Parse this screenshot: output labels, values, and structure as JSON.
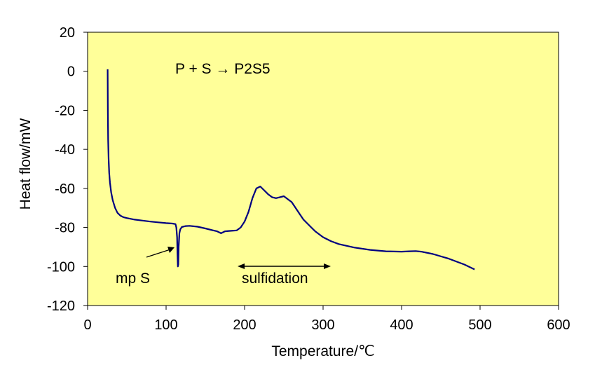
{
  "chart_data": {
    "type": "line",
    "title": "P + S → P2S5",
    "xlabel": "Temperature/℃",
    "ylabel": "Heat flow/mW",
    "xlim": [
      0,
      600
    ],
    "ylim": [
      -120,
      20
    ],
    "xticks": [
      0,
      100,
      200,
      300,
      400,
      500,
      600
    ],
    "yticks": [
      20,
      0,
      -20,
      -40,
      -60,
      -80,
      -100,
      -120
    ],
    "xtick_labels": [
      "0",
      "100",
      "200",
      "300",
      "400",
      "500",
      "600"
    ],
    "ytick_labels": [
      "20",
      "0",
      "-20",
      "-40",
      "-60",
      "-80",
      "-100",
      "-120"
    ],
    "grid": false,
    "plot_background": "#FFFF99",
    "line_color": "#000080",
    "series": [
      {
        "x": [
          25.5,
          25.8,
          26.2,
          26.8,
          27.5,
          28.5,
          30,
          32,
          35,
          38,
          42,
          46,
          50,
          55,
          60,
          70,
          80,
          90,
          100,
          108,
          112,
          113,
          114,
          114.5,
          115,
          115.5,
          116,
          117,
          118,
          120,
          125,
          130,
          140,
          150,
          160,
          165,
          170,
          175,
          180,
          190,
          195,
          200,
          205,
          210,
          215,
          220,
          225,
          230,
          235,
          240,
          245,
          250,
          255,
          260,
          265,
          270,
          275,
          280,
          285,
          290,
          300,
          310,
          320,
          340,
          360,
          380,
          400,
          410,
          418,
          425,
          440,
          460,
          480,
          493
        ],
        "y": [
          1,
          -20,
          -35,
          -45,
          -52,
          -57,
          -62,
          -66,
          -70,
          -72.5,
          -74,
          -74.8,
          -75.2,
          -75.6,
          -76,
          -76.5,
          -77,
          -77.4,
          -77.8,
          -78,
          -78.3,
          -80,
          -85,
          -93,
          -100,
          -99,
          -90,
          -83,
          -81,
          -79.8,
          -79.3,
          -79.2,
          -79.6,
          -80.5,
          -81.5,
          -82,
          -83,
          -82,
          -81.8,
          -81.5,
          -80,
          -77,
          -72,
          -65,
          -60,
          -59,
          -61,
          -63,
          -64.5,
          -65,
          -64.5,
          -64,
          -65.5,
          -67,
          -70,
          -73,
          -76,
          -78,
          -80,
          -82,
          -85,
          -87,
          -88.5,
          -90.3,
          -91.5,
          -92.2,
          -92.4,
          -92.2,
          -92.1,
          -92.4,
          -93.6,
          -96,
          -99,
          -101.5
        ]
      }
    ],
    "annotations": [
      {
        "text": "mp S",
        "x": 110,
        "y": -100
      },
      {
        "text": "sulfidation",
        "range": [
          193,
          312
        ],
        "y": -99
      }
    ]
  }
}
